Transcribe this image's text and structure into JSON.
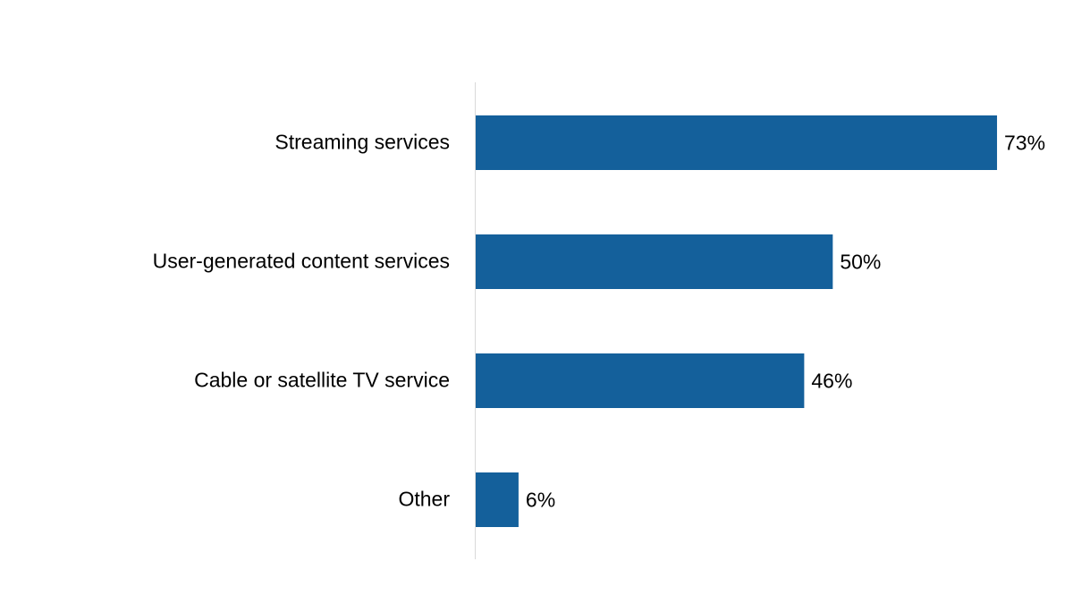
{
  "chart_data": {
    "type": "hbar",
    "categories": [
      "Streaming services",
      "User-generated content services",
      "Cable or satellite TV service",
      "Other"
    ],
    "values": [
      73,
      50,
      46,
      6
    ],
    "value_labels": [
      "73%",
      "50%",
      "46%",
      "6%"
    ],
    "color": "#14609b",
    "xlim": [
      0,
      75
    ]
  }
}
